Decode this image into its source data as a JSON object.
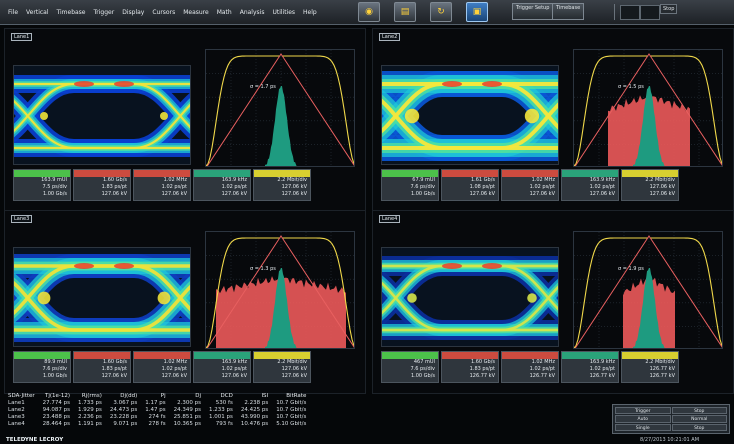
{
  "menu": [
    "File",
    "Vertical",
    "Timebase",
    "Trigger",
    "Display",
    "Cursors",
    "Measure",
    "Math",
    "Analysis",
    "Utilities",
    "Help"
  ],
  "toolbar": {
    "icons": [
      "eye-icon",
      "spectrum-icon",
      "refresh-icon",
      "capture-icon"
    ],
    "selected_index": 3,
    "trigger_setup_label": "Trigger Setup",
    "timebase_label": "Timebase",
    "mini_label": "Stop"
  },
  "panels": [
    {
      "tag": "Lane1",
      "stats": [
        {
          "hdr": "",
          "color": "#4cc14a",
          "v": [
            "163.9 mUI",
            "7.5 ps/div",
            "1.00 Gb/s"
          ]
        },
        {
          "hdr": "",
          "color": "#cc4b3f",
          "v": [
            "1.60 Gb/s",
            "1.83 ps/pt",
            "127.06 kV"
          ]
        },
        {
          "hdr": "",
          "color": "#cc4b3f",
          "v": [
            "1.02 MHz",
            "1.02 ps/pt",
            "127.06 kV"
          ]
        },
        {
          "hdr": "",
          "color": "#2aa37a",
          "v": [
            "163.9 kHz",
            "1.02 ps/pt",
            "127.06 kV"
          ]
        },
        {
          "hdr": "",
          "color": "#d8cf30",
          "v": [
            "2.2 Mbit/div",
            "127.06 kV",
            "127.06 kV"
          ]
        }
      ]
    },
    {
      "tag": "Lane2",
      "stats": [
        {
          "hdr": "",
          "color": "#4cc14a",
          "v": [
            "67.9 mUI",
            "7.6 ps/div",
            "1.00 Gb/s"
          ]
        },
        {
          "hdr": "",
          "color": "#cc4b3f",
          "v": [
            "1.61 Gb/s",
            "1.08 ps/pt",
            "127.06 kV"
          ]
        },
        {
          "hdr": "",
          "color": "#cc4b3f",
          "v": [
            "1.02 MHz",
            "1.02 ps/pt",
            "127.06 kV"
          ]
        },
        {
          "hdr": "",
          "color": "#2aa37a",
          "v": [
            "163.9 kHz",
            "1.02 ps/pt",
            "127.06 kV"
          ]
        },
        {
          "hdr": "",
          "color": "#d8cf30",
          "v": [
            "2.2 Mbit/div",
            "127.06 kV",
            "127.06 kV"
          ]
        }
      ]
    },
    {
      "tag": "Lane3",
      "stats": [
        {
          "hdr": "",
          "color": "#4cc14a",
          "v": [
            "89.9 mUI",
            "7.6 ps/div",
            "1.00 Gb/s"
          ]
        },
        {
          "hdr": "",
          "color": "#cc4b3f",
          "v": [
            "1.60 Gb/s",
            "1.83 ps/pt",
            "127.06 kV"
          ]
        },
        {
          "hdr": "",
          "color": "#cc4b3f",
          "v": [
            "1.02 MHz",
            "1.02 ps/pt",
            "127.06 kV"
          ]
        },
        {
          "hdr": "",
          "color": "#2aa37a",
          "v": [
            "163.9 kHz",
            "1.02 ps/pt",
            "127.06 kV"
          ]
        },
        {
          "hdr": "",
          "color": "#d8cf30",
          "v": [
            "2.2 Mbit/div",
            "127.06 kV",
            "127.06 kV"
          ]
        }
      ]
    },
    {
      "tag": "Lane4",
      "stats": [
        {
          "hdr": "",
          "color": "#4cc14a",
          "v": [
            "467 mUI",
            "7.6 ps/div",
            "1.00 Gb/s"
          ]
        },
        {
          "hdr": "",
          "color": "#cc4b3f",
          "v": [
            "1.60 Gb/s",
            "1.83 ps/pt",
            "126.77 kV"
          ]
        },
        {
          "hdr": "",
          "color": "#cc4b3f",
          "v": [
            "1.02 MHz",
            "1.02 ps/pt",
            "126.77 kV"
          ]
        },
        {
          "hdr": "",
          "color": "#2aa37a",
          "v": [
            "163.9 kHz",
            "1.02 ps/pt",
            "126.77 kV"
          ]
        },
        {
          "hdr": "",
          "color": "#d8cf30",
          "v": [
            "2.2 Mbit/div",
            "126.77 kV",
            "126.77 kV"
          ]
        }
      ]
    }
  ],
  "eye_annotation": [
    "σ = 1.7 ps",
    "σ = 1.5 ps",
    "σ = 1.3 ps",
    "σ = 1.9 ps"
  ],
  "table": {
    "headers": [
      "SDA-Jitter",
      "Tj(1e-12)",
      "Rj(rms)",
      "Dj(dd)",
      "Pj",
      "Dj",
      "DCD",
      "ISI",
      "BitRate"
    ],
    "rows": [
      [
        "Lane1",
        "27.774 ps",
        "1.733 ps",
        "3.067 ps",
        "1.17 ps",
        "2.300 ps",
        "530 fs",
        "2.238 ps",
        "10.7 Gbit/s"
      ],
      [
        "Lane2",
        "94.087 ps",
        "1.929 ps",
        "24.473 ps",
        "1.47 ps",
        "24.349 ps",
        "1.233 ps",
        "24.425 ps",
        "10.7 Gbit/s"
      ],
      [
        "Lane3",
        "23.488 ps",
        "2.236 ps",
        "23.228 ps",
        "274 fs",
        "25.851 ps",
        "1.001 ps",
        "43.990 ps",
        "10.7 Gbit/s"
      ],
      [
        "Lane4",
        "28.464 ps",
        "1.191 ps",
        "9.071 ps",
        "278 fs",
        "10.365 ps",
        "793 fs",
        "10.476 ps",
        "5.10 Gbit/s"
      ]
    ]
  },
  "brand": "TELEDYNE LECROY",
  "controls": [
    "Trigger",
    "Stop",
    "Auto",
    "Normal",
    "Single",
    "Stop"
  ],
  "clock": "8/27/2013 10:21:01 AM",
  "colors": {
    "eye_hot": "#f6e636",
    "eye_cool": "#0d3cc8",
    "bath_yellow": "#f0d84a",
    "hist_red": "#ec5a5a",
    "hist_green": "#1e9b80"
  }
}
